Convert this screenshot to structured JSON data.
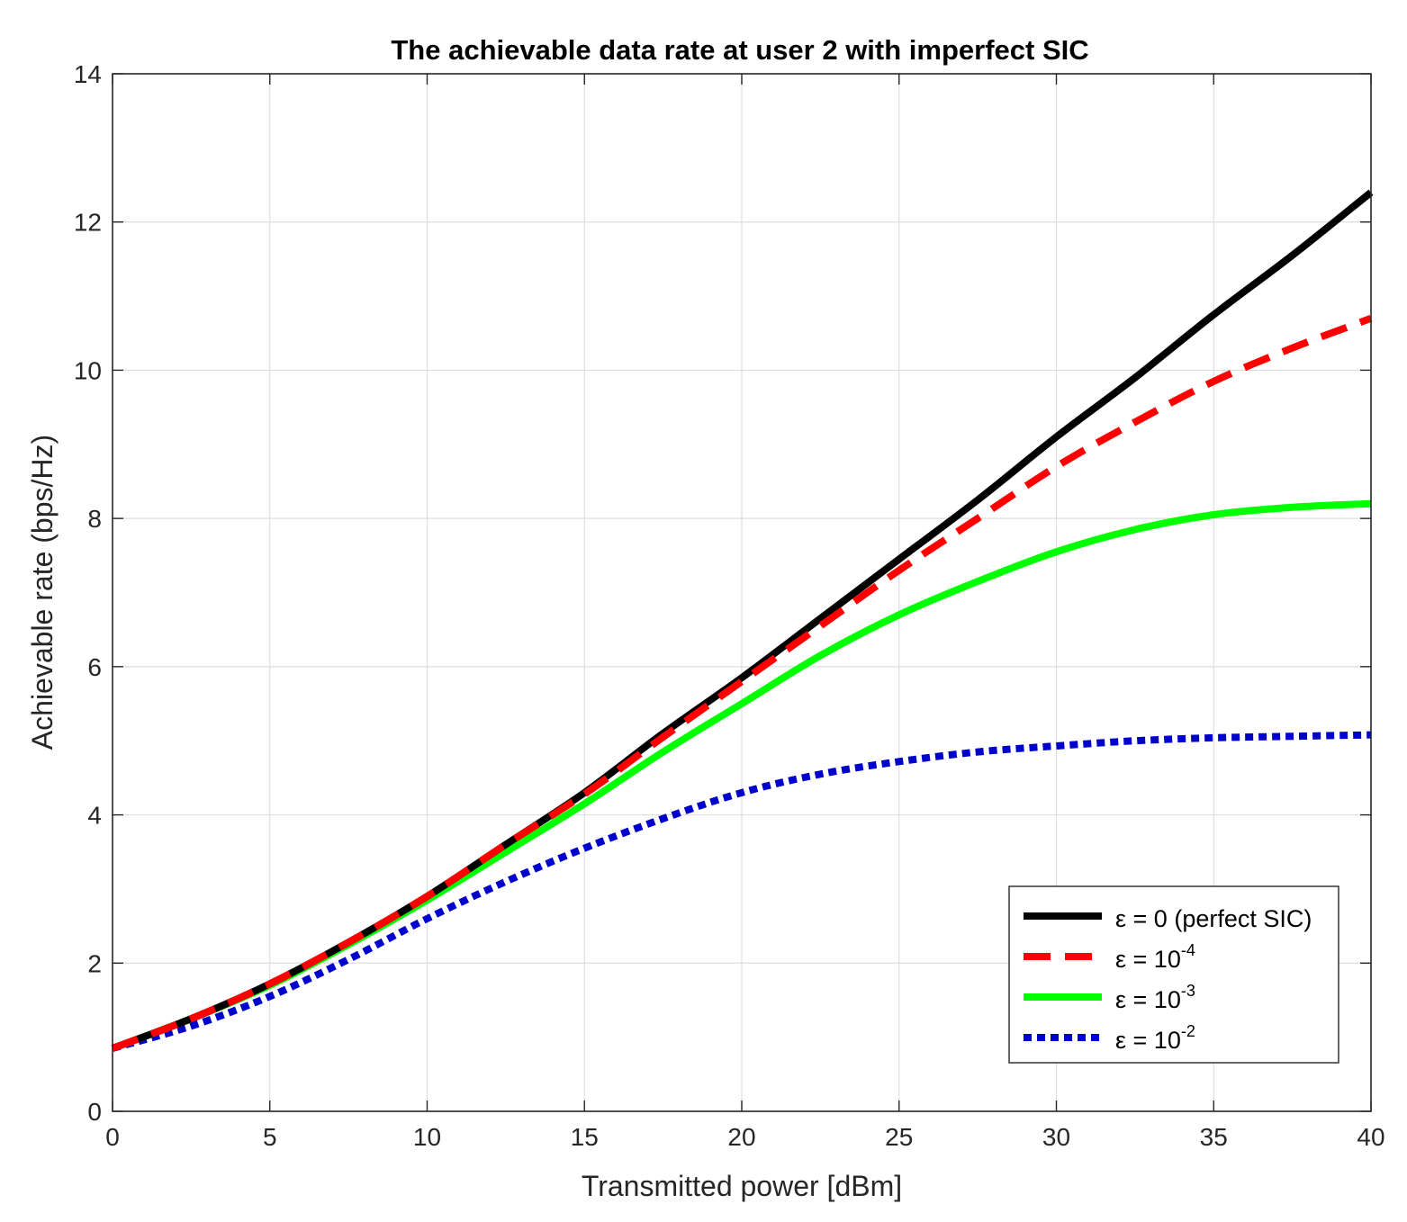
{
  "chart_data": {
    "type": "line",
    "title": "The achievable data rate at user 2 with imperfect SIC",
    "xlabel": "Transmitted power [dBm]",
    "ylabel": "Achievable rate (bps/Hz)",
    "xlim": [
      0,
      40
    ],
    "ylim": [
      0,
      14
    ],
    "xticks": [
      0,
      5,
      10,
      15,
      20,
      25,
      30,
      35,
      40
    ],
    "yticks": [
      0,
      2,
      4,
      6,
      8,
      10,
      12,
      14
    ],
    "grid": true,
    "legend_position": "bottom-right",
    "x": [
      0,
      2.5,
      5,
      7.5,
      10,
      12.5,
      15,
      17.5,
      20,
      22.5,
      25,
      27.5,
      30,
      32.5,
      35,
      37.5,
      40
    ],
    "series": [
      {
        "name": "ε = 0 (perfect SIC)",
        "legend_base": "ε = 0 (perfect SIC)",
        "legend_exp": "",
        "color": "#000000",
        "style": "solid",
        "values": [
          0.85,
          1.25,
          1.72,
          2.28,
          2.9,
          3.6,
          4.3,
          5.1,
          5.85,
          6.65,
          7.45,
          8.25,
          9.1,
          9.9,
          10.75,
          11.55,
          12.4
        ]
      },
      {
        "name": "ε = 10^-4",
        "legend_base": "ε = 10",
        "legend_exp": "-4",
        "color": "#ff0000",
        "style": "dashed",
        "values": [
          0.85,
          1.25,
          1.72,
          2.28,
          2.9,
          3.6,
          4.28,
          5.05,
          5.8,
          6.55,
          7.3,
          8.0,
          8.7,
          9.3,
          9.85,
          10.3,
          10.7
        ]
      },
      {
        "name": "ε = 10^-3",
        "legend_base": "ε = 10",
        "legend_exp": "-3",
        "color": "#00ff00",
        "style": "solid",
        "values": [
          0.85,
          1.25,
          1.7,
          2.25,
          2.85,
          3.5,
          4.15,
          4.85,
          5.5,
          6.15,
          6.7,
          7.15,
          7.55,
          7.85,
          8.05,
          8.15,
          8.2
        ]
      },
      {
        "name": "ε = 10^-2",
        "legend_base": "ε = 10",
        "legend_exp": "-2",
        "color": "#0000cd",
        "style": "dotted",
        "values": [
          0.85,
          1.15,
          1.55,
          2.05,
          2.6,
          3.1,
          3.55,
          3.95,
          4.3,
          4.55,
          4.72,
          4.85,
          4.93,
          5.0,
          5.04,
          5.06,
          5.08
        ]
      }
    ]
  }
}
